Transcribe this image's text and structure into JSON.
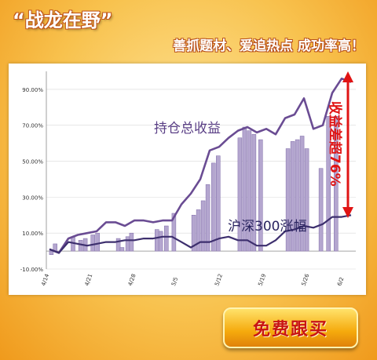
{
  "banner": {
    "title": "“战龙在野”",
    "slogan": "善抓题材、爱追热点 成功率高！",
    "cta_label": "免费跟买"
  },
  "colors": {
    "line": "#6a4c93",
    "bar": "#b4a6cf",
    "arrow": "#e01414"
  },
  "chart_data": {
    "type": "bar+line",
    "y_ticks": [
      "90.00%",
      "70.00%",
      "50.00%",
      "30.00%",
      "10.00%",
      "-10.00%"
    ],
    "ylim": [
      -10,
      100
    ],
    "x_ticks": [
      "4/14",
      "4/21",
      "4/28",
      "5/5",
      "5/12",
      "5/19",
      "5/26",
      "6/2"
    ],
    "bars": [
      {
        "x": 0.2,
        "value": -2
      },
      {
        "x": 0.6,
        "value": 4
      },
      {
        "x": 2.5,
        "value": 8
      },
      {
        "x": 3.3,
        "value": 6
      },
      {
        "x": 3.8,
        "value": 7
      },
      {
        "x": 4.6,
        "value": 9
      },
      {
        "x": 5.1,
        "value": 10
      },
      {
        "x": 7.3,
        "value": 7
      },
      {
        "x": 7.7,
        "value": 2
      },
      {
        "x": 8.3,
        "value": 8
      },
      {
        "x": 8.7,
        "value": 10
      },
      {
        "x": 11.4,
        "value": 12
      },
      {
        "x": 11.8,
        "value": 11
      },
      {
        "x": 12.4,
        "value": 14
      },
      {
        "x": 13.2,
        "value": 21
      },
      {
        "x": 15.3,
        "value": 20
      },
      {
        "x": 15.8,
        "value": 23
      },
      {
        "x": 16.3,
        "value": 28
      },
      {
        "x": 16.8,
        "value": 37
      },
      {
        "x": 17.4,
        "value": 49
      },
      {
        "x": 17.9,
        "value": 53
      },
      {
        "x": 20.2,
        "value": 63
      },
      {
        "x": 20.7,
        "value": 69
      },
      {
        "x": 21.2,
        "value": 67
      },
      {
        "x": 21.7,
        "value": 65
      },
      {
        "x": 22.4,
        "value": 62
      },
      {
        "x": 25.3,
        "value": 57
      },
      {
        "x": 25.8,
        "value": 61
      },
      {
        "x": 26.3,
        "value": 62
      },
      {
        "x": 26.8,
        "value": 64
      },
      {
        "x": 27.3,
        "value": 57
      },
      {
        "x": 28.8,
        "value": 46
      },
      {
        "x": 29.6,
        "value": 75
      },
      {
        "x": 30.4,
        "value": 75
      }
    ],
    "series": [
      {
        "name": "持仓总收益",
        "points": [
          [
            0,
            1
          ],
          [
            1,
            -1
          ],
          [
            2,
            7
          ],
          [
            3,
            9
          ],
          [
            4,
            10
          ],
          [
            5,
            11
          ],
          [
            6,
            16
          ],
          [
            7,
            16
          ],
          [
            8,
            14
          ],
          [
            9,
            17
          ],
          [
            10,
            17
          ],
          [
            11,
            16
          ],
          [
            12,
            17
          ],
          [
            13,
            17
          ],
          [
            14,
            26
          ],
          [
            15,
            32
          ],
          [
            16,
            40
          ],
          [
            17,
            56
          ],
          [
            18,
            58
          ],
          [
            19,
            63
          ],
          [
            20,
            67
          ],
          [
            21,
            69
          ],
          [
            22,
            66
          ],
          [
            23,
            68
          ],
          [
            24,
            65
          ],
          [
            25,
            74
          ],
          [
            26,
            76
          ],
          [
            27,
            85
          ],
          [
            28,
            68
          ],
          [
            29,
            70
          ],
          [
            30,
            88
          ],
          [
            31,
            96
          ],
          [
            32,
            94
          ]
        ]
      },
      {
        "name": "沪深300涨幅",
        "points": [
          [
            0,
            1
          ],
          [
            1,
            -1
          ],
          [
            2,
            5
          ],
          [
            3,
            4
          ],
          [
            4,
            3
          ],
          [
            5,
            4
          ],
          [
            6,
            5
          ],
          [
            7,
            5
          ],
          [
            8,
            6
          ],
          [
            9,
            6
          ],
          [
            10,
            7
          ],
          [
            11,
            7
          ],
          [
            12,
            8
          ],
          [
            13,
            8
          ],
          [
            14,
            5
          ],
          [
            15,
            2
          ],
          [
            16,
            5
          ],
          [
            17,
            5
          ],
          [
            18,
            7
          ],
          [
            19,
            8
          ],
          [
            20,
            6
          ],
          [
            21,
            6
          ],
          [
            22,
            3
          ],
          [
            23,
            3
          ],
          [
            24,
            6
          ],
          [
            25,
            11
          ],
          [
            26,
            12
          ],
          [
            27,
            14
          ],
          [
            28,
            13
          ],
          [
            29,
            15
          ],
          [
            30,
            19
          ],
          [
            31,
            19
          ],
          [
            32,
            20
          ]
        ]
      }
    ],
    "annotations": {
      "gap_label": "收益差超76%",
      "series1_label": "持仓总收益",
      "series2_label": "沪深300涨幅"
    }
  }
}
